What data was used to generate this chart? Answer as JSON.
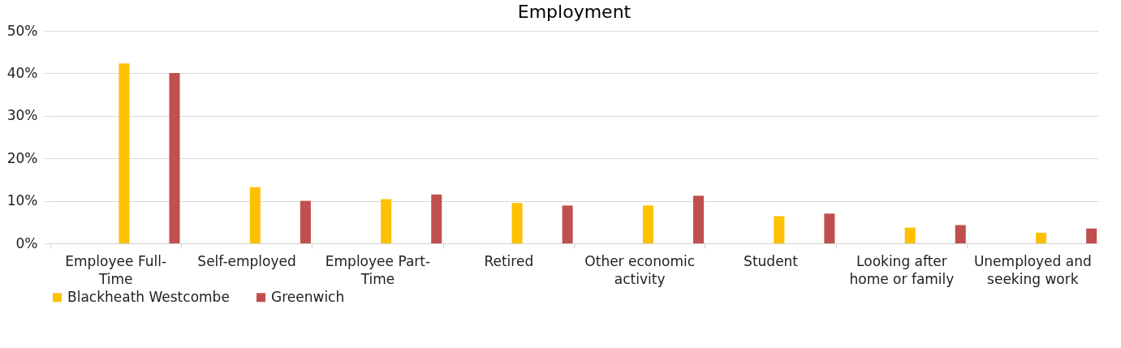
{
  "chart_data": {
    "type": "bar",
    "title": "Employment",
    "categories": [
      "Employee Full-Time",
      "Self-employed",
      "Employee Part-Time",
      "Retired",
      "Other economic activity",
      "Student",
      "Looking after home or family",
      "Unemployed and seeking work"
    ],
    "series": [
      {
        "name": "Blackheath Westcombe",
        "color": "#ffc000",
        "values": [
          42.3,
          13.2,
          10.4,
          9.5,
          8.9,
          6.4,
          3.7,
          2.5
        ]
      },
      {
        "name": "Greenwich",
        "color": "#c0504d",
        "values": [
          40.1,
          10.0,
          11.5,
          8.9,
          11.2,
          7.0,
          4.3,
          3.5
        ]
      }
    ],
    "ylim": [
      0,
      50
    ],
    "yticks": [
      {
        "value": 0,
        "label": "0%"
      },
      {
        "value": 10,
        "label": "10%"
      },
      {
        "value": 20,
        "label": "20%"
      },
      {
        "value": 30,
        "label": "30%"
      },
      {
        "value": 40,
        "label": "40%"
      },
      {
        "value": 50,
        "label": "50%"
      }
    ],
    "grid": "y",
    "legend": "bottom"
  }
}
